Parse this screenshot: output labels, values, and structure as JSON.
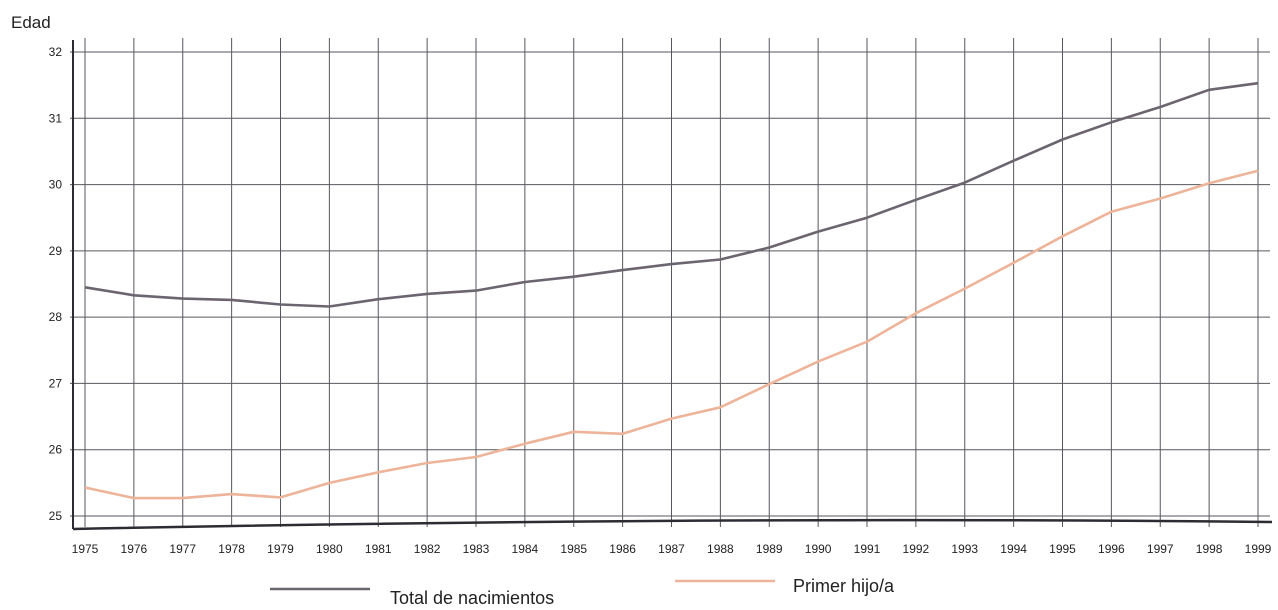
{
  "chart_data": {
    "type": "line",
    "ylabel": "Edad",
    "xlabel": "",
    "x": [
      "1975",
      "1976",
      "1977",
      "1978",
      "1979",
      "1980",
      "1981",
      "1982",
      "1983",
      "1984",
      "1985",
      "1986",
      "1987",
      "1988",
      "1989",
      "1990",
      "1991",
      "1992",
      "1993",
      "1994",
      "1995",
      "1996",
      "1997",
      "1998",
      "1999"
    ],
    "yticks": [
      "25",
      "26",
      "27",
      "28",
      "29",
      "30",
      "31",
      "32"
    ],
    "ylim": [
      25,
      32
    ],
    "grid": true,
    "legend_position": "bottom-center",
    "series": [
      {
        "name": "Total de nacimientos",
        "color": "#6b6570",
        "values": [
          28.45,
          28.33,
          28.28,
          28.26,
          28.19,
          28.16,
          28.27,
          28.35,
          28.4,
          28.53,
          28.61,
          28.71,
          28.8,
          28.87,
          29.05,
          29.29,
          29.5,
          29.77,
          30.03,
          30.36,
          30.68,
          30.94,
          31.17,
          31.43,
          31.53
        ]
      },
      {
        "name": "Primer hijo/a",
        "color": "#eeb49a",
        "values": [
          25.43,
          25.27,
          25.27,
          25.33,
          25.28,
          25.5,
          25.66,
          25.8,
          25.89,
          26.09,
          26.27,
          26.24,
          26.47,
          26.64,
          26.99,
          27.33,
          27.63,
          28.06,
          28.43,
          28.82,
          29.22,
          29.59,
          29.79,
          30.02,
          30.21
        ]
      }
    ]
  }
}
